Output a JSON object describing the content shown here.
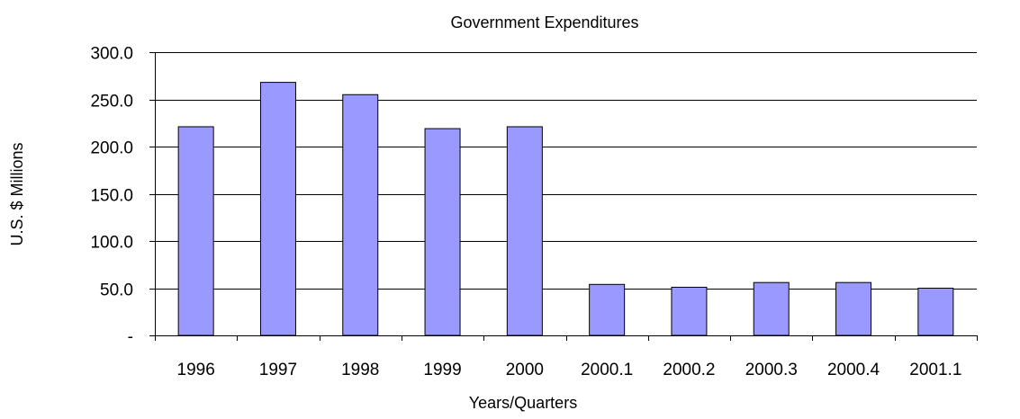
{
  "chart_data": {
    "type": "bar",
    "title": "Government Expenditures",
    "xlabel": "Years/Quarters",
    "ylabel": "U.S. $ Millions",
    "categories": [
      "1996",
      "1997",
      "1998",
      "1999",
      "2000",
      "2000.1",
      "2000.2",
      "2000.3",
      "2000.4",
      "2001.1"
    ],
    "values": [
      221,
      268,
      255,
      219,
      221,
      54,
      51,
      56,
      56,
      50
    ],
    "ylim": [
      0,
      300
    ],
    "yticks": [
      0,
      50,
      100,
      150,
      200,
      250,
      300
    ],
    "ytick_labels": [
      "-",
      "50.0",
      "100.0",
      "150.0",
      "200.0",
      "250.0",
      "300.0"
    ],
    "grid": true,
    "legend": "none",
    "colors": {
      "bar_fill": "#9999ff",
      "bar_stroke": "#000000",
      "gridline": "#000000"
    }
  }
}
